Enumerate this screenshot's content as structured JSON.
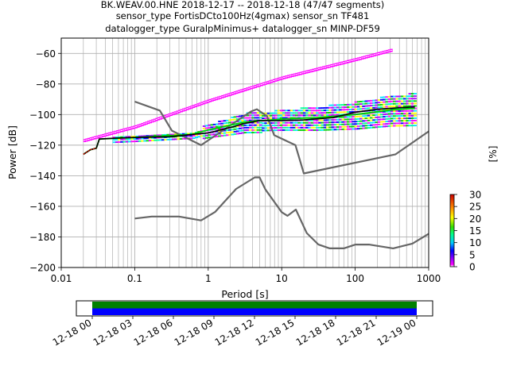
{
  "figure": {
    "title_lines": [
      "BK.WEAV.00.HNE   2018-12-17 -- 2018-12-18  (47/47 segments)",
      "sensor_type FortisDCto100Hz(4gmax) sensor_sn TF481",
      "datalogger_type GuralpMinimus+ datalogger_sn MINP-DF59"
    ]
  },
  "chart_data": [
    {
      "type": "heatmap",
      "title": "BK.WEAV.00.HNE   2018-12-17 -- 2018-12-18  (47/47 segments)",
      "xlabel": "Period [s]",
      "ylabel": "Power [dB]",
      "xscale": "log",
      "xlim": [
        0.01,
        1000
      ],
      "ylim": [
        -200,
        -50
      ],
      "xticks": [
        0.01,
        0.1,
        1,
        10,
        100,
        1000
      ],
      "xtick_labels": [
        "0.01",
        "0.1",
        "1",
        "10",
        "100",
        "1000"
      ],
      "yticks": [
        -200,
        -180,
        -160,
        -140,
        -120,
        -100,
        -80,
        -60
      ],
      "ytick_labels": [
        "−200",
        "−180",
        "−160",
        "−140",
        "−120",
        "−100",
        "−80",
        "−60"
      ],
      "grid": true,
      "colorbar": {
        "label": "[%]",
        "range": [
          0,
          30
        ],
        "ticks": [
          0,
          5,
          10,
          15,
          20,
          25,
          30
        ],
        "tick_labels": [
          "0",
          "5",
          "10",
          "15",
          "20",
          "25",
          "30"
        ],
        "colormap": "pqlx"
      },
      "noise_models": {
        "nhnm": [
          [
            0.1,
            -91.5
          ],
          [
            0.22,
            -97.4
          ],
          [
            0.32,
            -110.5
          ],
          [
            0.8,
            -120
          ],
          [
            3.8,
            -98
          ],
          [
            4.6,
            -96.5
          ],
          [
            6.3,
            -101
          ],
          [
            7.9,
            -113.5
          ],
          [
            15.4,
            -120
          ],
          [
            20,
            -138.5
          ],
          [
            354.8,
            -126
          ],
          [
            1000,
            -111
          ]
        ],
        "nlnm": [
          [
            0.1,
            -168
          ],
          [
            0.17,
            -166.7
          ],
          [
            0.4,
            -166.7
          ],
          [
            0.8,
            -169.2
          ],
          [
            1.24,
            -163.7
          ],
          [
            2.4,
            -148.6
          ],
          [
            4.3,
            -141.1
          ],
          [
            5,
            -141.1
          ],
          [
            6,
            -149
          ],
          [
            10,
            -163.8
          ],
          [
            12,
            -166.2
          ],
          [
            15.6,
            -162.1
          ],
          [
            21.9,
            -177.5
          ],
          [
            31.6,
            -185
          ],
          [
            45,
            -187.5
          ],
          [
            70,
            -187.5
          ],
          [
            101,
            -185
          ],
          [
            154,
            -185
          ],
          [
            328,
            -187.5
          ],
          [
            600,
            -184.4
          ],
          [
            1000,
            -178
          ]
        ]
      },
      "psd_band_upper": [
        [
          0.02,
          -116
        ],
        [
          0.1,
          -107
        ],
        [
          1,
          -90
        ],
        [
          10,
          -75
        ],
        [
          100,
          -63
        ],
        [
          300,
          -57
        ]
      ],
      "psd_band_lower": [
        [
          0.02,
          -118
        ],
        [
          0.1,
          -109
        ],
        [
          1,
          -92
        ],
        [
          10,
          -77
        ],
        [
          100,
          -65
        ],
        [
          300,
          -59
        ]
      ],
      "mean_psd": [
        [
          0.02,
          -126
        ],
        [
          0.025,
          -123
        ],
        [
          0.03,
          -122
        ],
        [
          0.033,
          -116
        ],
        [
          0.05,
          -115.5
        ],
        [
          0.1,
          -115
        ],
        [
          0.3,
          -114.5
        ],
        [
          0.6,
          -113
        ],
        [
          1,
          -112
        ],
        [
          2,
          -108.5
        ],
        [
          3,
          -106
        ],
        [
          5,
          -104
        ],
        [
          10,
          -104
        ],
        [
          20,
          -103.5
        ],
        [
          50,
          -102
        ],
        [
          100,
          -98.5
        ],
        [
          200,
          -96.5
        ],
        [
          400,
          -95.5
        ],
        [
          650,
          -95
        ]
      ],
      "mode_psd": [
        [
          0.02,
          -126
        ],
        [
          0.025,
          -123
        ],
        [
          0.03,
          -122
        ],
        [
          0.033,
          -116
        ],
        [
          0.1,
          -115
        ],
        [
          0.6,
          -113
        ],
        [
          1,
          -110
        ],
        [
          2,
          -107
        ],
        [
          3,
          -105
        ],
        [
          5,
          -104
        ],
        [
          10,
          -103
        ],
        [
          30,
          -102
        ],
        [
          100,
          -100
        ],
        [
          300,
          -97
        ],
        [
          650,
          -96
        ]
      ]
    },
    {
      "type": "bar",
      "title": "",
      "xlabel": "",
      "ylabel": "",
      "xtick_labels": [
        "12-18 00",
        "12-18 03",
        "12-18 06",
        "12-18 09",
        "12-18 12",
        "12-18 15",
        "12-18 18",
        "12-18 21",
        "12-19 00"
      ],
      "coverage": {
        "start": "12-18 00",
        "end": "12-19 00",
        "upper_fraction_green": 0.5,
        "lower_fraction_blue": 0.5
      }
    }
  ],
  "colors": {
    "nhnm": "#666666",
    "band_magenta": "#ff00ff",
    "cyan": "#00e5ff",
    "blue": "#0000ff",
    "green": "#00d000",
    "mean_line": "#000000",
    "start_red": "#ff0000",
    "coverage_green": "#008000",
    "coverage_blue": "#0000ff"
  }
}
